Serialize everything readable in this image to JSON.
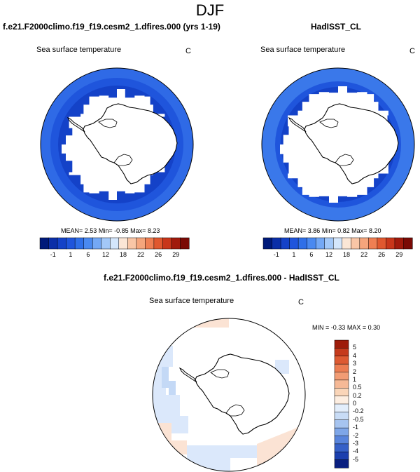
{
  "figure": {
    "season": "DJF",
    "unit_label": "C"
  },
  "chart_data": [
    {
      "type": "heatmap",
      "title": "f.e21.F2000climo.f19_f19.cesm2_1.dfires.000 (yrs 1-19)",
      "subtitle": "Sea surface temperature",
      "units": "C",
      "stats": {
        "mean_label": "MEAN=",
        "mean": "2.53",
        "min_label": "Min=",
        "min": "-0.85",
        "max_label": "Max=",
        "max": "8.23"
      },
      "colorbar": {
        "orientation": "horizontal",
        "colors": [
          "#001a7a",
          "#0b2fa8",
          "#1442c8",
          "#1f55dc",
          "#2f6fe8",
          "#4a89f0",
          "#74a8f5",
          "#a3c8f8",
          "#d4e6fb",
          "#fbe6d6",
          "#f9c6a6",
          "#f5a57c",
          "#ef7f53",
          "#e0582f",
          "#c8361a",
          "#a11a0c",
          "#7a0a05"
        ],
        "tick_labels": [
          "-1",
          "1",
          "6",
          "12",
          "18",
          "22",
          "26",
          "29"
        ]
      },
      "field_colors": {
        "outer": "#2f6ae6",
        "inner": "#1f55dc",
        "coastal": "#1442c8",
        "ice": "#ffffff",
        "land": "#ffffff"
      }
    },
    {
      "type": "heatmap",
      "title": "HadISST_CL",
      "subtitle": "Sea surface temperature",
      "units": "C",
      "stats": {
        "mean_label": "MEAN=",
        "mean": "3.86",
        "min_label": "Min=",
        "min": "0.82",
        "max_label": "Max=",
        "max": "8.20"
      },
      "colorbar": {
        "orientation": "horizontal",
        "colors": [
          "#001a7a",
          "#0b2fa8",
          "#1442c8",
          "#1f55dc",
          "#2f6fe8",
          "#4a89f0",
          "#74a8f5",
          "#a3c8f8",
          "#d4e6fb",
          "#fbe6d6",
          "#f9c6a6",
          "#f5a57c",
          "#ef7f53",
          "#e0582f",
          "#c8361a",
          "#a11a0c",
          "#7a0a05"
        ],
        "tick_labels": [
          "-1",
          "1",
          "6",
          "12",
          "18",
          "22",
          "26",
          "29"
        ]
      },
      "field_colors": {
        "outer": "#3a78ea",
        "inner": "#1f55dc",
        "coastal": "#1442c8",
        "ice": "#ffffff",
        "land": "#ffffff"
      }
    },
    {
      "type": "heatmap",
      "title": "f.e21.F2000climo.f19_f19.cesm2_1.dfires.000 - HadISST_CL",
      "subtitle": "Sea surface temperature",
      "units": "C",
      "stats": {
        "min_label": "MIN =",
        "min": "-0.33",
        "max_label": "MAX =",
        "max": "0.30"
      },
      "colorbar": {
        "orientation": "vertical",
        "colors_top_to_bottom": [
          "#9e1c0a",
          "#c53a1c",
          "#dd5a32",
          "#ec7d52",
          "#f29c74",
          "#f6b996",
          "#fad5b8",
          "#fdeee1",
          "#e3eefb",
          "#c8dcf6",
          "#a6c4f0",
          "#7ea6e8",
          "#5884dc",
          "#3560c8",
          "#1b3fae",
          "#0a1f80"
        ],
        "tick_labels": [
          "5",
          "4",
          "3",
          "2",
          "1",
          "0.5",
          "0.2",
          "0",
          "-0.2",
          "-0.5",
          "-1",
          "-2",
          "-3",
          "-4",
          "-5"
        ]
      },
      "field_colors": {
        "blue_patch": "#dbe8fb",
        "blue_patch_strong": "#c4d9f6",
        "red_patch": "#fbe3d4",
        "ocean": "#ffffff",
        "land": "#ffffff"
      }
    }
  ]
}
